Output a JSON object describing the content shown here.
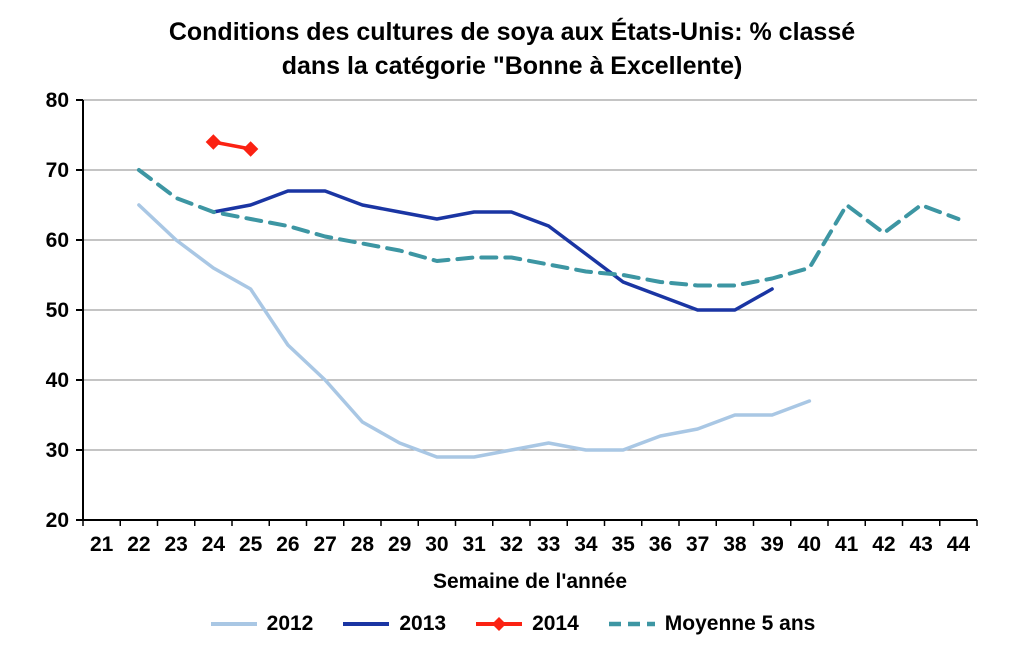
{
  "title": {
    "line1": "Conditions des cultures de soya aux États-Unis: % classé",
    "line2": "dans la catégorie \"Bonne à Excellente)"
  },
  "x_axis": {
    "title": "Semaine de l'année",
    "ticks": [
      21,
      22,
      23,
      24,
      25,
      26,
      27,
      28,
      29,
      30,
      31,
      32,
      33,
      34,
      35,
      36,
      37,
      38,
      39,
      40,
      41,
      42,
      43,
      44
    ]
  },
  "y_axis": {
    "min": 20,
    "max": 80,
    "step": 10
  },
  "chart_data": {
    "type": "line",
    "xlabel": "Semaine de l'année",
    "ylabel": "",
    "ylim": [
      20,
      80
    ],
    "grid": "horizontal",
    "legend_position": "bottom",
    "series": [
      {
        "name": "2012",
        "color": "#A9C7E4",
        "style": "solid",
        "width": 3.5,
        "marker": "none",
        "x": [
          22,
          23,
          24,
          25,
          26,
          27,
          28,
          29,
          30,
          31,
          32,
          33,
          34,
          35,
          36,
          37,
          38,
          39,
          40
        ],
        "values": [
          65,
          60,
          56,
          53,
          45,
          40,
          34,
          31,
          29,
          29,
          30,
          31,
          30,
          30,
          32,
          33,
          35,
          35,
          37
        ]
      },
      {
        "name": "2013",
        "color": "#1A35A3",
        "style": "solid",
        "width": 3.5,
        "marker": "none",
        "x": [
          24,
          25,
          26,
          27,
          28,
          29,
          30,
          31,
          32,
          33,
          34,
          35,
          36,
          37,
          38,
          39
        ],
        "values": [
          64,
          65,
          67,
          67,
          65,
          64,
          63,
          64,
          64,
          62,
          58,
          54,
          52,
          50,
          50,
          53
        ]
      },
      {
        "name": "2014",
        "color": "#FB2213",
        "style": "solid",
        "width": 3.5,
        "marker": "diamond",
        "x": [
          24,
          25
        ],
        "values": [
          74,
          73
        ]
      },
      {
        "name": "Moyenne 5 ans",
        "color": "#3D96A3",
        "style": "dashed",
        "width": 4,
        "marker": "none",
        "x": [
          22,
          23,
          24,
          25,
          26,
          27,
          28,
          29,
          30,
          31,
          32,
          33,
          34,
          35,
          36,
          37,
          38,
          39,
          40,
          41,
          42,
          43,
          44
        ],
        "values": [
          70,
          66,
          64,
          63,
          62,
          60.5,
          59.5,
          58.5,
          57,
          57.5,
          57.5,
          56.5,
          55.5,
          55,
          54,
          53.5,
          53.5,
          54.5,
          56,
          65,
          61,
          65,
          63
        ]
      }
    ]
  }
}
